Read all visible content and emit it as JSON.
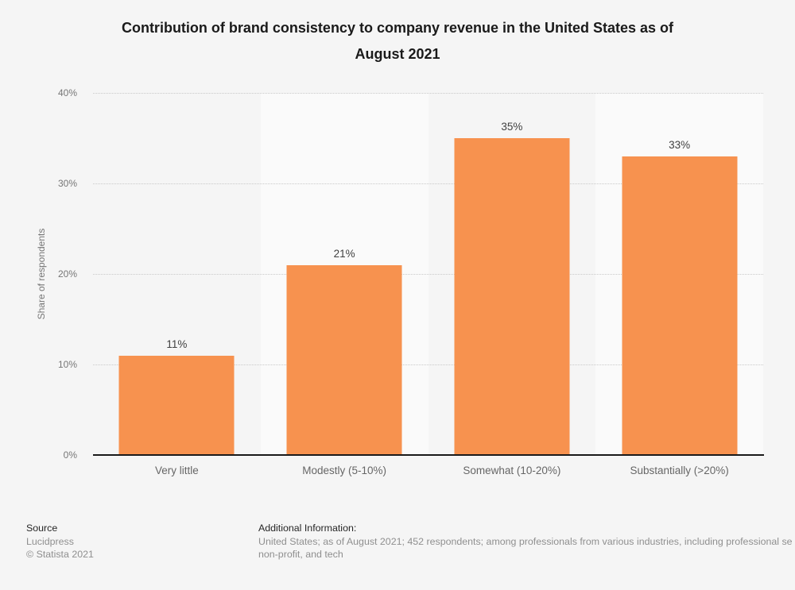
{
  "header": {
    "title_lines": [
      "Contribution of brand consistency to company revenue in the United States as of",
      "August 2021"
    ]
  },
  "chart_data": {
    "type": "bar",
    "title": "Contribution of brand consistency to company revenue in the United States as of August 2021",
    "categories": [
      "Very little",
      "Modestly (5-10%)",
      "Somewhat (10-20%)",
      "Substantially (>20%)"
    ],
    "values": [
      11,
      21,
      35,
      33
    ],
    "value_labels": [
      "11%",
      "21%",
      "35%",
      "33%"
    ],
    "xlabel": "",
    "ylabel": "Share of respondents",
    "ylim": [
      0,
      40
    ],
    "yticks": [
      "0%",
      "10%",
      "20%",
      "30%",
      "40%"
    ],
    "grid": "horizontal-dotted",
    "legend": "none",
    "bar_color": "#f7924f"
  },
  "footer": {
    "source_label": "Source",
    "source_name": "Lucidpress",
    "copyright": "© Statista 2021",
    "additional_info_label": "Additional Information:",
    "additional_info_lines": [
      "United States; as of August 2021; 452 respondents; among professionals from various industries, including professional se",
      "non-profit, and tech"
    ]
  },
  "colors": {
    "page_background": "#f5f5f5",
    "alt_band": "#fafafa",
    "bar": "#f7924f",
    "axis_line": "#1a1a1a",
    "gridline": "#c9c9c9",
    "title_text": "#1a1a1a",
    "value_label_text": "#404040",
    "x_label_text": "#666666",
    "y_label_text": "#767676",
    "footer_dark_text": "#262626",
    "footer_gray_text": "#8f8f8f"
  }
}
